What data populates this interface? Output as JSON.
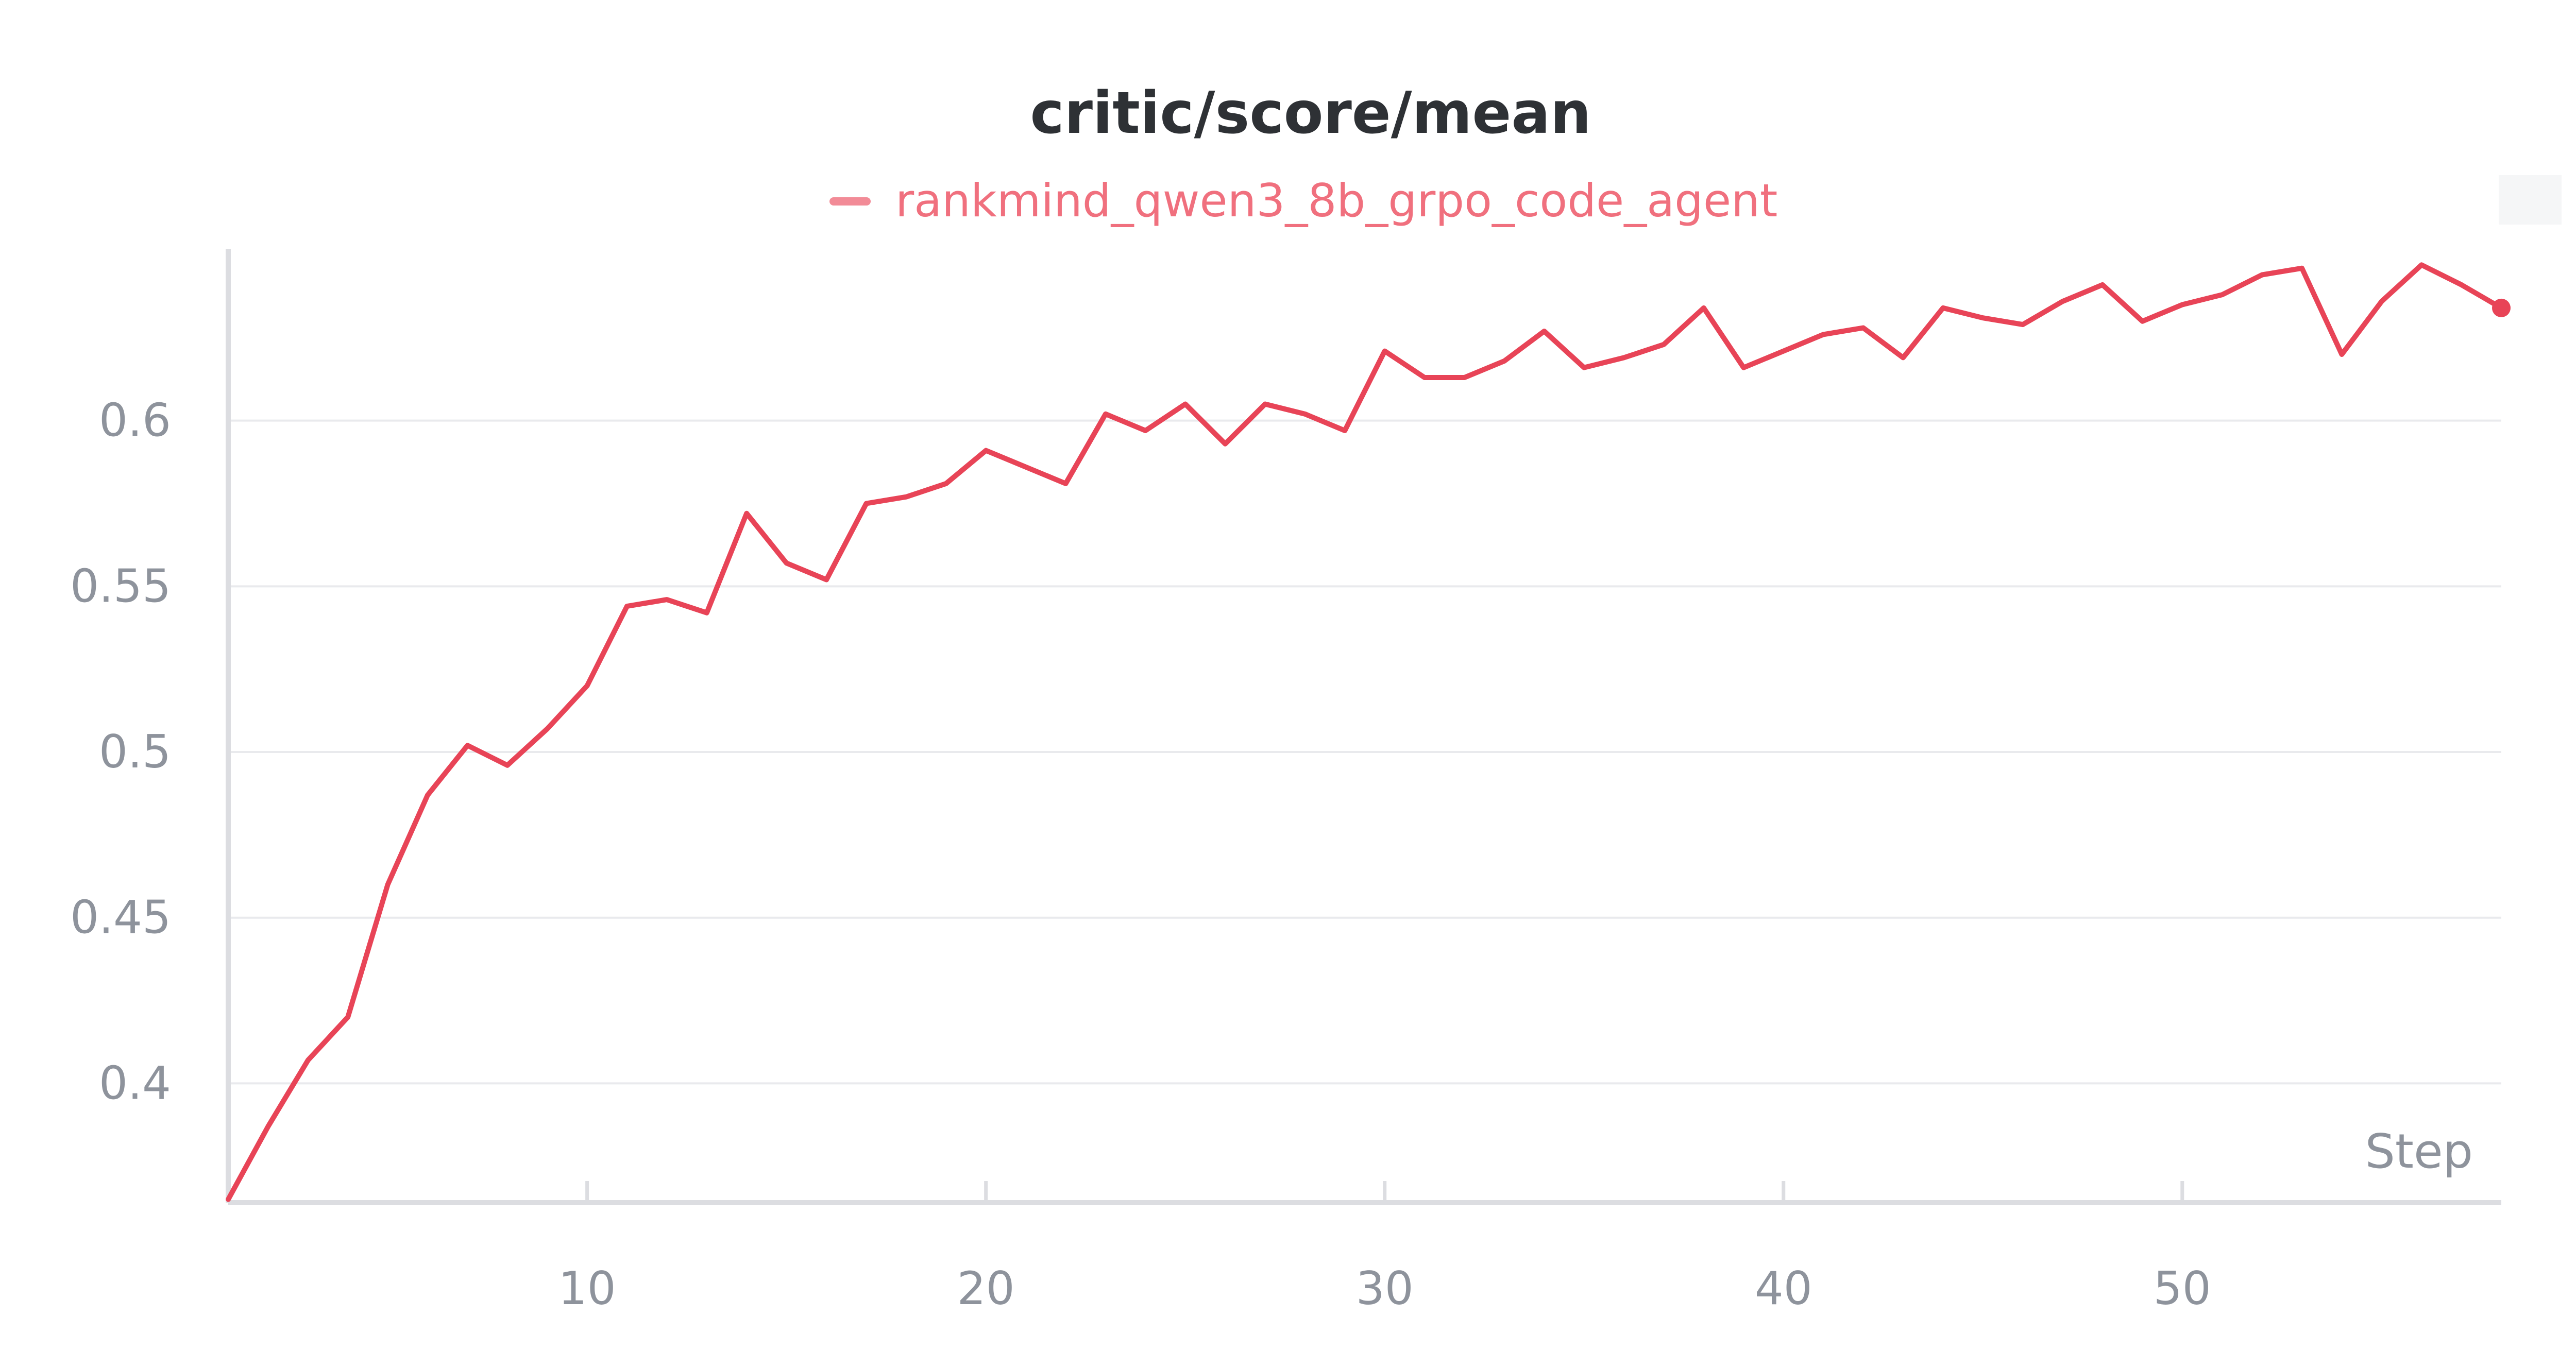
{
  "chart_data": {
    "type": "line",
    "title": "critic/score/mean",
    "xlabel": "Step",
    "ylabel": "",
    "xlim": [
      1,
      58
    ],
    "ylim": [
      0.364,
      0.65
    ],
    "xticks": [
      10,
      20,
      30,
      40,
      50
    ],
    "yticks": [
      0.4,
      0.45,
      0.5,
      0.55,
      0.6
    ],
    "xtick_labels": [
      "10",
      "20",
      "30",
      "40",
      "50"
    ],
    "ytick_labels": [
      "0.4",
      "0.45",
      "0.5",
      "0.55",
      "0.6"
    ],
    "grid": "horizontal",
    "legend_position": "top-center",
    "series": [
      {
        "name": "rankmind_qwen3_8b_grpo_code_agent",
        "color": "#e84457",
        "legend_color": "#f28b97",
        "x": [
          1,
          2,
          3,
          4,
          5,
          6,
          7,
          8,
          9,
          10,
          11,
          12,
          13,
          14,
          15,
          16,
          17,
          18,
          19,
          20,
          21,
          22,
          23,
          24,
          25,
          26,
          27,
          28,
          29,
          30,
          31,
          32,
          33,
          34,
          35,
          36,
          37,
          38,
          39,
          40,
          41,
          42,
          43,
          44,
          45,
          46,
          47,
          48,
          49,
          50,
          51,
          52,
          53,
          54,
          55,
          56,
          57,
          58
        ],
        "values": [
          0.365,
          0.387,
          0.407,
          0.42,
          0.46,
          0.487,
          0.502,
          0.496,
          0.507,
          0.52,
          0.544,
          0.546,
          0.542,
          0.572,
          0.557,
          0.552,
          0.575,
          0.577,
          0.581,
          0.591,
          0.586,
          0.581,
          0.602,
          0.597,
          0.605,
          0.593,
          0.605,
          0.602,
          0.597,
          0.621,
          0.613,
          0.613,
          0.618,
          0.627,
          0.616,
          0.619,
          0.623,
          0.634,
          0.616,
          0.621,
          0.626,
          0.628,
          0.619,
          0.634,
          0.631,
          0.629,
          0.636,
          0.641,
          0.63,
          0.635,
          0.638,
          0.644,
          0.646,
          0.62,
          0.636,
          0.647,
          0.641,
          0.634
        ]
      }
    ]
  }
}
